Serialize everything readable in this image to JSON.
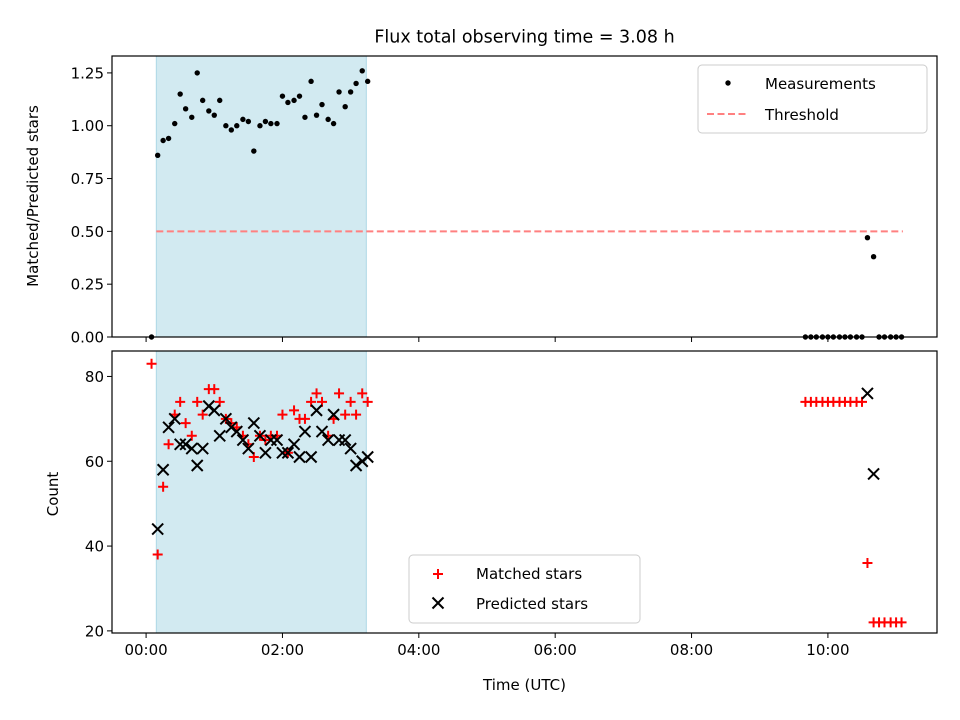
{
  "chart_data": [
    {
      "type": "scatter",
      "title": "Flux total observing time = 3.08 h",
      "xlabel": "",
      "ylabel": "Matched/Predicted stars",
      "xlim": [
        -0.5,
        11.6
      ],
      "ylim": [
        0,
        1.33
      ],
      "yticks": [
        0.0,
        0.25,
        0.5,
        0.75,
        1.0,
        1.25
      ],
      "ytick_labels": [
        "0.00",
        "0.25",
        "0.50",
        "0.75",
        "1.00",
        "1.25"
      ],
      "shaded_span": {
        "x": [
          0.15,
          3.23
        ],
        "color": "#add8e6"
      },
      "legend": {
        "placement": "upper right",
        "entries": [
          "Measurements",
          "Threshold"
        ]
      },
      "threshold": {
        "name": "Threshold",
        "y": 0.5,
        "x": [
          0.15,
          11.1
        ],
        "color": "#ff8080",
        "style": "dashed"
      },
      "series": [
        {
          "name": "Measurements",
          "color": "#000000",
          "marker": "dot",
          "x": [
            0.08,
            0.17,
            0.25,
            0.33,
            0.42,
            0.5,
            0.58,
            0.67,
            0.75,
            0.83,
            0.92,
            1.0,
            1.08,
            1.17,
            1.25,
            1.33,
            1.42,
            1.5,
            1.58,
            1.67,
            1.75,
            1.83,
            1.92,
            2.0,
            2.08,
            2.17,
            2.25,
            2.33,
            2.42,
            2.5,
            2.58,
            2.67,
            2.75,
            2.83,
            2.92,
            3.0,
            3.08,
            3.17,
            3.25,
            9.67,
            9.75,
            9.83,
            9.92,
            10.0,
            10.08,
            10.17,
            10.25,
            10.33,
            10.42,
            10.5,
            10.58,
            10.67,
            10.75,
            10.83,
            10.92,
            11.0,
            11.08
          ],
          "y": [
            0.0,
            0.86,
            0.93,
            0.94,
            1.01,
            1.15,
            1.08,
            1.04,
            1.25,
            1.12,
            1.07,
            1.05,
            1.12,
            1.0,
            0.98,
            1.0,
            1.03,
            1.02,
            0.88,
            1.0,
            1.02,
            1.01,
            1.01,
            1.14,
            1.11,
            1.12,
            1.14,
            1.04,
            1.21,
            1.05,
            1.1,
            1.03,
            1.01,
            1.16,
            1.09,
            1.16,
            1.2,
            1.26,
            1.21,
            0.0,
            0.0,
            0.0,
            0.0,
            0.0,
            0.0,
            0.0,
            0.0,
            0.0,
            0.0,
            0.0,
            0.47,
            0.38,
            0.0,
            0.0,
            0.0,
            0.0,
            0.0
          ]
        }
      ]
    },
    {
      "type": "scatter",
      "title": "",
      "xlabel": "Time (UTC)",
      "ylabel": "Count",
      "xlim": [
        -0.5,
        11.6
      ],
      "ylim": [
        19.5,
        86
      ],
      "yticks": [
        20,
        40,
        60,
        80
      ],
      "ytick_labels": [
        "20",
        "40",
        "60",
        "80"
      ],
      "xticks": [
        0,
        2,
        4,
        6,
        8,
        10
      ],
      "xtick_labels": [
        "00:00",
        "02:00",
        "04:00",
        "06:00",
        "08:00",
        "10:00"
      ],
      "shaded_span": {
        "x": [
          0.15,
          3.23
        ],
        "color": "#add8e6"
      },
      "legend": {
        "placement": "lower center",
        "entries": [
          "Matched stars",
          "Predicted stars"
        ]
      },
      "series": [
        {
          "name": "Matched stars",
          "color": "#ff0000",
          "marker": "plus",
          "x": [
            0.08,
            0.17,
            0.25,
            0.33,
            0.42,
            0.5,
            0.58,
            0.67,
            0.75,
            0.83,
            0.92,
            1.0,
            1.08,
            1.17,
            1.25,
            1.33,
            1.42,
            1.5,
            1.58,
            1.67,
            1.75,
            1.83,
            1.92,
            2.0,
            2.08,
            2.17,
            2.25,
            2.33,
            2.42,
            2.5,
            2.58,
            2.67,
            2.75,
            2.83,
            2.92,
            3.0,
            3.08,
            3.17,
            3.25,
            9.67,
            9.75,
            9.83,
            9.92,
            10.0,
            10.08,
            10.17,
            10.25,
            10.33,
            10.42,
            10.5,
            10.58,
            10.67,
            10.75,
            10.83,
            10.92,
            11.0,
            11.08
          ],
          "y": [
            83,
            38,
            54,
            64,
            71,
            74,
            69,
            66,
            74,
            71,
            77,
            77,
            74,
            70,
            69,
            68,
            66,
            64,
            61,
            66,
            65,
            66,
            66,
            71,
            62,
            72,
            70,
            70,
            74,
            76,
            74,
            66,
            70,
            76,
            71,
            74,
            71,
            76,
            74,
            74,
            74,
            74,
            74,
            74,
            74,
            74,
            74,
            74,
            74,
            74,
            36,
            22,
            22,
            22,
            22,
            22,
            22
          ]
        },
        {
          "name": "Predicted stars",
          "color": "#000000",
          "marker": "x",
          "x": [
            0.17,
            0.25,
            0.33,
            0.42,
            0.5,
            0.58,
            0.67,
            0.75,
            0.83,
            0.92,
            1.0,
            1.08,
            1.17,
            1.25,
            1.33,
            1.42,
            1.5,
            1.58,
            1.67,
            1.75,
            1.83,
            1.92,
            2.0,
            2.08,
            2.17,
            2.25,
            2.33,
            2.42,
            2.5,
            2.58,
            2.67,
            2.75,
            2.83,
            2.92,
            3.0,
            3.08,
            3.17,
            3.25,
            10.58,
            10.67
          ],
          "y": [
            44,
            58,
            68,
            70,
            64,
            64,
            63,
            59,
            63,
            73,
            72,
            66,
            70,
            68,
            67,
            65,
            63,
            69,
            66,
            62,
            65,
            65,
            62,
            62,
            64,
            61,
            67,
            61,
            72,
            67,
            65,
            71,
            65,
            65,
            63,
            59,
            60,
            61,
            76,
            57
          ]
        }
      ]
    }
  ]
}
